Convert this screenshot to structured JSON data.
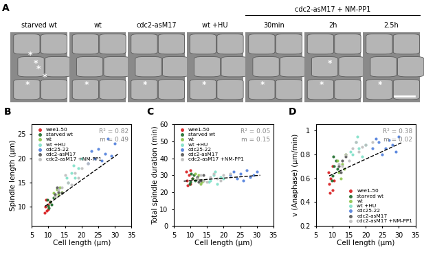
{
  "panel_a": {
    "label": "A",
    "asterisk": "*",
    "images": [
      {
        "label": "starved wt",
        "asterisks": 5
      },
      {
        "label": "wt",
        "asterisks": 1
      },
      {
        "label": "cdc2-asM17",
        "asterisks": 1
      },
      {
        "label": "wt +HU",
        "asterisks": 1
      },
      {
        "label": "30min",
        "asterisks": 1
      },
      {
        "label": "2h",
        "asterisks": 2
      },
      {
        "label": "2.5h",
        "asterisks": 1
      }
    ],
    "group": {
      "label": "cdc2-asM17 + NM-PP1",
      "members": [
        "30min",
        "2h",
        "2.5h"
      ]
    }
  },
  "chart_data": [
    {
      "type": "scatter",
      "label": "B",
      "x_label": "Cell length (µm)",
      "y_label": "Spindle length (µm)",
      "xlim": [
        5,
        35
      ],
      "xticks": [
        5,
        10,
        15,
        20,
        25,
        30,
        35
      ],
      "ylim": [
        6,
        27
      ],
      "yticks": [
        10,
        15,
        20,
        25
      ],
      "legend": "upper left",
      "annotations": [
        "R² = 0.82",
        "m = 0.49"
      ],
      "fit_line": {
        "x": [
          9,
          31
        ],
        "values": [
          10.1,
          20.9
        ],
        "line_style": "dashed",
        "color": "#000000"
      },
      "series": [
        {
          "name": "wee1-50",
          "color": "#d7191c",
          "marker": "o",
          "x": [
            9,
            9.5,
            10,
            8.8,
            10.5,
            9.2,
            10
          ],
          "values": [
            10,
            9.2,
            10.5,
            8.7,
            11,
            11.5,
            9.5
          ]
        },
        {
          "name": "starved wt",
          "color": "#1a6b2a",
          "marker": "o",
          "x": [
            10,
            10.5,
            11,
            9.8,
            11.5,
            10.2
          ],
          "values": [
            10.2,
            11,
            10.5,
            11.5,
            11.8,
            9.8
          ]
        },
        {
          "name": "wt",
          "color": "#8bc34a",
          "marker": "o",
          "x": [
            12,
            13,
            12.5,
            14,
            11.5,
            13.5
          ],
          "values": [
            12,
            12.5,
            13.5,
            13,
            12.8,
            14
          ]
        },
        {
          "name": "wt +HU",
          "color": "#7fe0c8",
          "marker": "o",
          "x": [
            16,
            17,
            18,
            19,
            20,
            17.5,
            15.5
          ],
          "values": [
            15,
            17,
            16,
            18,
            20,
            18.5,
            16
          ]
        },
        {
          "name": "cdc25-22",
          "color": "#4f7fdc",
          "marker": "o",
          "x": [
            22,
            24,
            25,
            27,
            28,
            30,
            26,
            23,
            29
          ],
          "values": [
            19,
            20,
            22,
            21,
            24,
            23,
            19.5,
            21.5,
            20.5
          ]
        },
        {
          "name": "cdc2-asM17",
          "color": "#555555",
          "marker": "o",
          "x": [
            12,
            13,
            14,
            12.5
          ],
          "values": [
            12.5,
            13,
            12.8,
            14
          ]
        },
        {
          "name": "cdc2-asM17 +NM-PP1",
          "color": "#bdbdbd",
          "marker": "o",
          "x": [
            12,
            14,
            16,
            18,
            20,
            22,
            15,
            17,
            13,
            19
          ],
          "values": [
            12,
            14,
            15,
            17,
            18,
            19,
            16.5,
            14.5,
            13.5,
            16
          ]
        }
      ]
    },
    {
      "type": "scatter",
      "label": "C",
      "x_label": "Cell length (µm)",
      "y_label": "Total spindle duration (min)",
      "xlim": [
        5,
        35
      ],
      "xticks": [
        5,
        10,
        15,
        20,
        25,
        30,
        35
      ],
      "ylim": [
        0,
        60
      ],
      "yticks": [
        0,
        10,
        20,
        30,
        40,
        50,
        60
      ],
      "legend": "upper left",
      "annotations": [
        "R² = 0.05",
        "m = 0.15"
      ],
      "fit_line": {
        "x": [
          8,
          31
        ],
        "values": [
          26.5,
          30
        ],
        "line_style": "dashed",
        "color": "#000000"
      },
      "series": [
        {
          "name": "wee1-50",
          "color": "#d7191c",
          "marker": "o",
          "x": [
            9,
            9.5,
            10,
            8.8,
            10.5,
            9.2,
            10
          ],
          "values": [
            27,
            30,
            25,
            32,
            28,
            24,
            33
          ]
        },
        {
          "name": "starved wt",
          "color": "#1a6b2a",
          "marker": "o",
          "x": [
            10,
            10.5,
            11,
            9.8,
            11.5,
            10.2
          ],
          "values": [
            26,
            28,
            30,
            25,
            27,
            31
          ]
        },
        {
          "name": "wt",
          "color": "#8bc34a",
          "marker": "o",
          "x": [
            12,
            13,
            12.5,
            14,
            11.5,
            13.5
          ],
          "values": [
            28,
            25,
            30,
            27,
            31,
            26
          ]
        },
        {
          "name": "wt +HU",
          "color": "#7fe0c8",
          "marker": "o",
          "x": [
            16,
            17,
            18,
            19,
            20,
            17.5,
            15.5
          ],
          "values": [
            27,
            30,
            25,
            29,
            28,
            32,
            26
          ]
        },
        {
          "name": "cdc25-22",
          "color": "#4f7fdc",
          "marker": "o",
          "x": [
            22,
            24,
            25,
            27,
            28,
            30,
            26,
            23,
            29
          ],
          "values": [
            30,
            28,
            31,
            33,
            29,
            32,
            27,
            32,
            30
          ]
        },
        {
          "name": "cdc2-asM17",
          "color": "#555555",
          "marker": "o",
          "x": [
            12,
            13,
            14,
            12.5
          ],
          "values": [
            29,
            27,
            30,
            26
          ]
        },
        {
          "name": "cdc2-asM17 +NM-PP1",
          "color": "#bdbdbd",
          "marker": "o",
          "x": [
            12,
            14,
            16,
            18,
            20,
            22,
            15,
            17,
            13,
            19
          ],
          "values": [
            28,
            27,
            29,
            28,
            30,
            31,
            26,
            31,
            30,
            27
          ]
        }
      ]
    },
    {
      "type": "scatter",
      "label": "D",
      "x_label": "Cell length (µm)",
      "y_label": "v (Anaphase) (µm/min)",
      "xlim": [
        5,
        35
      ],
      "xticks": [
        5,
        10,
        15,
        20,
        25,
        30,
        35
      ],
      "ylim": [
        0.2,
        1.05
      ],
      "yticks": [
        0.2,
        0.4,
        0.6,
        0.8,
        1
      ],
      "legend": "lower right",
      "annotations": [
        "R² = 0.38",
        "m = 0.02"
      ],
      "fit_line": {
        "x": [
          9,
          31
        ],
        "values": [
          0.62,
          0.9
        ],
        "line_style": "dashed",
        "color": "#000000"
      },
      "series": [
        {
          "name": "wee1-50",
          "color": "#d7191c",
          "marker": "o",
          "x": [
            9,
            9.5,
            10,
            8.8,
            10.5,
            9.2,
            10
          ],
          "values": [
            0.55,
            0.6,
            0.5,
            0.65,
            0.58,
            0.48,
            0.7
          ]
        },
        {
          "name": "starved wt",
          "color": "#1a6b2a",
          "marker": "o",
          "x": [
            10,
            10.5,
            11,
            9.8,
            11.5,
            10.2
          ],
          "values": [
            0.62,
            0.7,
            0.75,
            0.58,
            0.68,
            0.78
          ]
        },
        {
          "name": "wt",
          "color": "#8bc34a",
          "marker": "o",
          "x": [
            12,
            13,
            12.5,
            14,
            11.5,
            13.5
          ],
          "values": [
            0.65,
            0.72,
            0.6,
            0.8,
            0.75,
            0.68
          ]
        },
        {
          "name": "wt +HU",
          "color": "#7fe0c8",
          "marker": "o",
          "x": [
            16,
            17,
            18,
            19,
            20,
            17.5,
            15.5
          ],
          "values": [
            0.8,
            0.9,
            0.85,
            0.78,
            0.88,
            0.95,
            0.82
          ]
        },
        {
          "name": "cdc25-22",
          "color": "#4f7fdc",
          "marker": "o",
          "x": [
            22,
            24,
            25,
            27,
            28,
            30,
            26,
            23,
            29
          ],
          "values": [
            0.85,
            0.9,
            0.8,
            0.92,
            0.88,
            0.95,
            0.85,
            0.93,
            0.82
          ]
        },
        {
          "name": "cdc2-asM17",
          "color": "#555555",
          "marker": "o",
          "x": [
            12,
            13,
            14,
            12.5
          ],
          "values": [
            0.7,
            0.75,
            0.78,
            0.65
          ]
        },
        {
          "name": "cdc2-asM17 +NM-PP1",
          "color": "#bdbdbd",
          "marker": "o",
          "x": [
            12,
            14,
            16,
            18,
            20,
            22,
            15,
            17,
            13,
            19
          ],
          "values": [
            0.72,
            0.8,
            0.85,
            0.82,
            0.88,
            0.9,
            0.75,
            0.9,
            0.7,
            0.86
          ]
        }
      ]
    }
  ]
}
